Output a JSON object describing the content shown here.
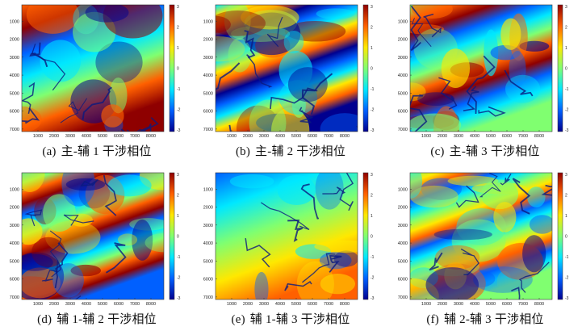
{
  "figure": {
    "y_ticks": [
      "1000",
      "2000",
      "3000",
      "4000",
      "5000",
      "6000",
      "7000"
    ],
    "x_ticks": [
      "1000",
      "2000",
      "3000",
      "4000",
      "5000",
      "6000",
      "7000",
      "8000"
    ],
    "colorbar_ticks": [
      "3",
      "2",
      "1",
      "0",
      "-1",
      "-2",
      "-3"
    ],
    "colormap": [
      "#00008f",
      "#0060ff",
      "#00e8ff",
      "#80ff70",
      "#ffe800",
      "#ff6000",
      "#8f0000"
    ],
    "panels": [
      {
        "label": "(a)",
        "caption": "主-辅 1 干涉相位",
        "fringes": 1.2,
        "base": 0.75
      },
      {
        "label": "(b)",
        "caption": "主-辅 2 干涉相位",
        "fringes": 2.6,
        "base": 0.4
      },
      {
        "label": "(c)",
        "caption": "主-辅 3 干涉相位",
        "fringes": 2.0,
        "base": 0.55
      },
      {
        "label": "(d)",
        "caption": "辅 1-辅 2 干涉相位",
        "fringes": 2.8,
        "base": 0.35
      },
      {
        "label": "(e)",
        "caption": "辅 1-辅 3 干涉相位",
        "fringes": 0.7,
        "base": 0.15
      },
      {
        "label": "(f)",
        "caption": "辅 2-辅 3 干涉相位",
        "fringes": 3.0,
        "base": 0.5
      }
    ]
  }
}
